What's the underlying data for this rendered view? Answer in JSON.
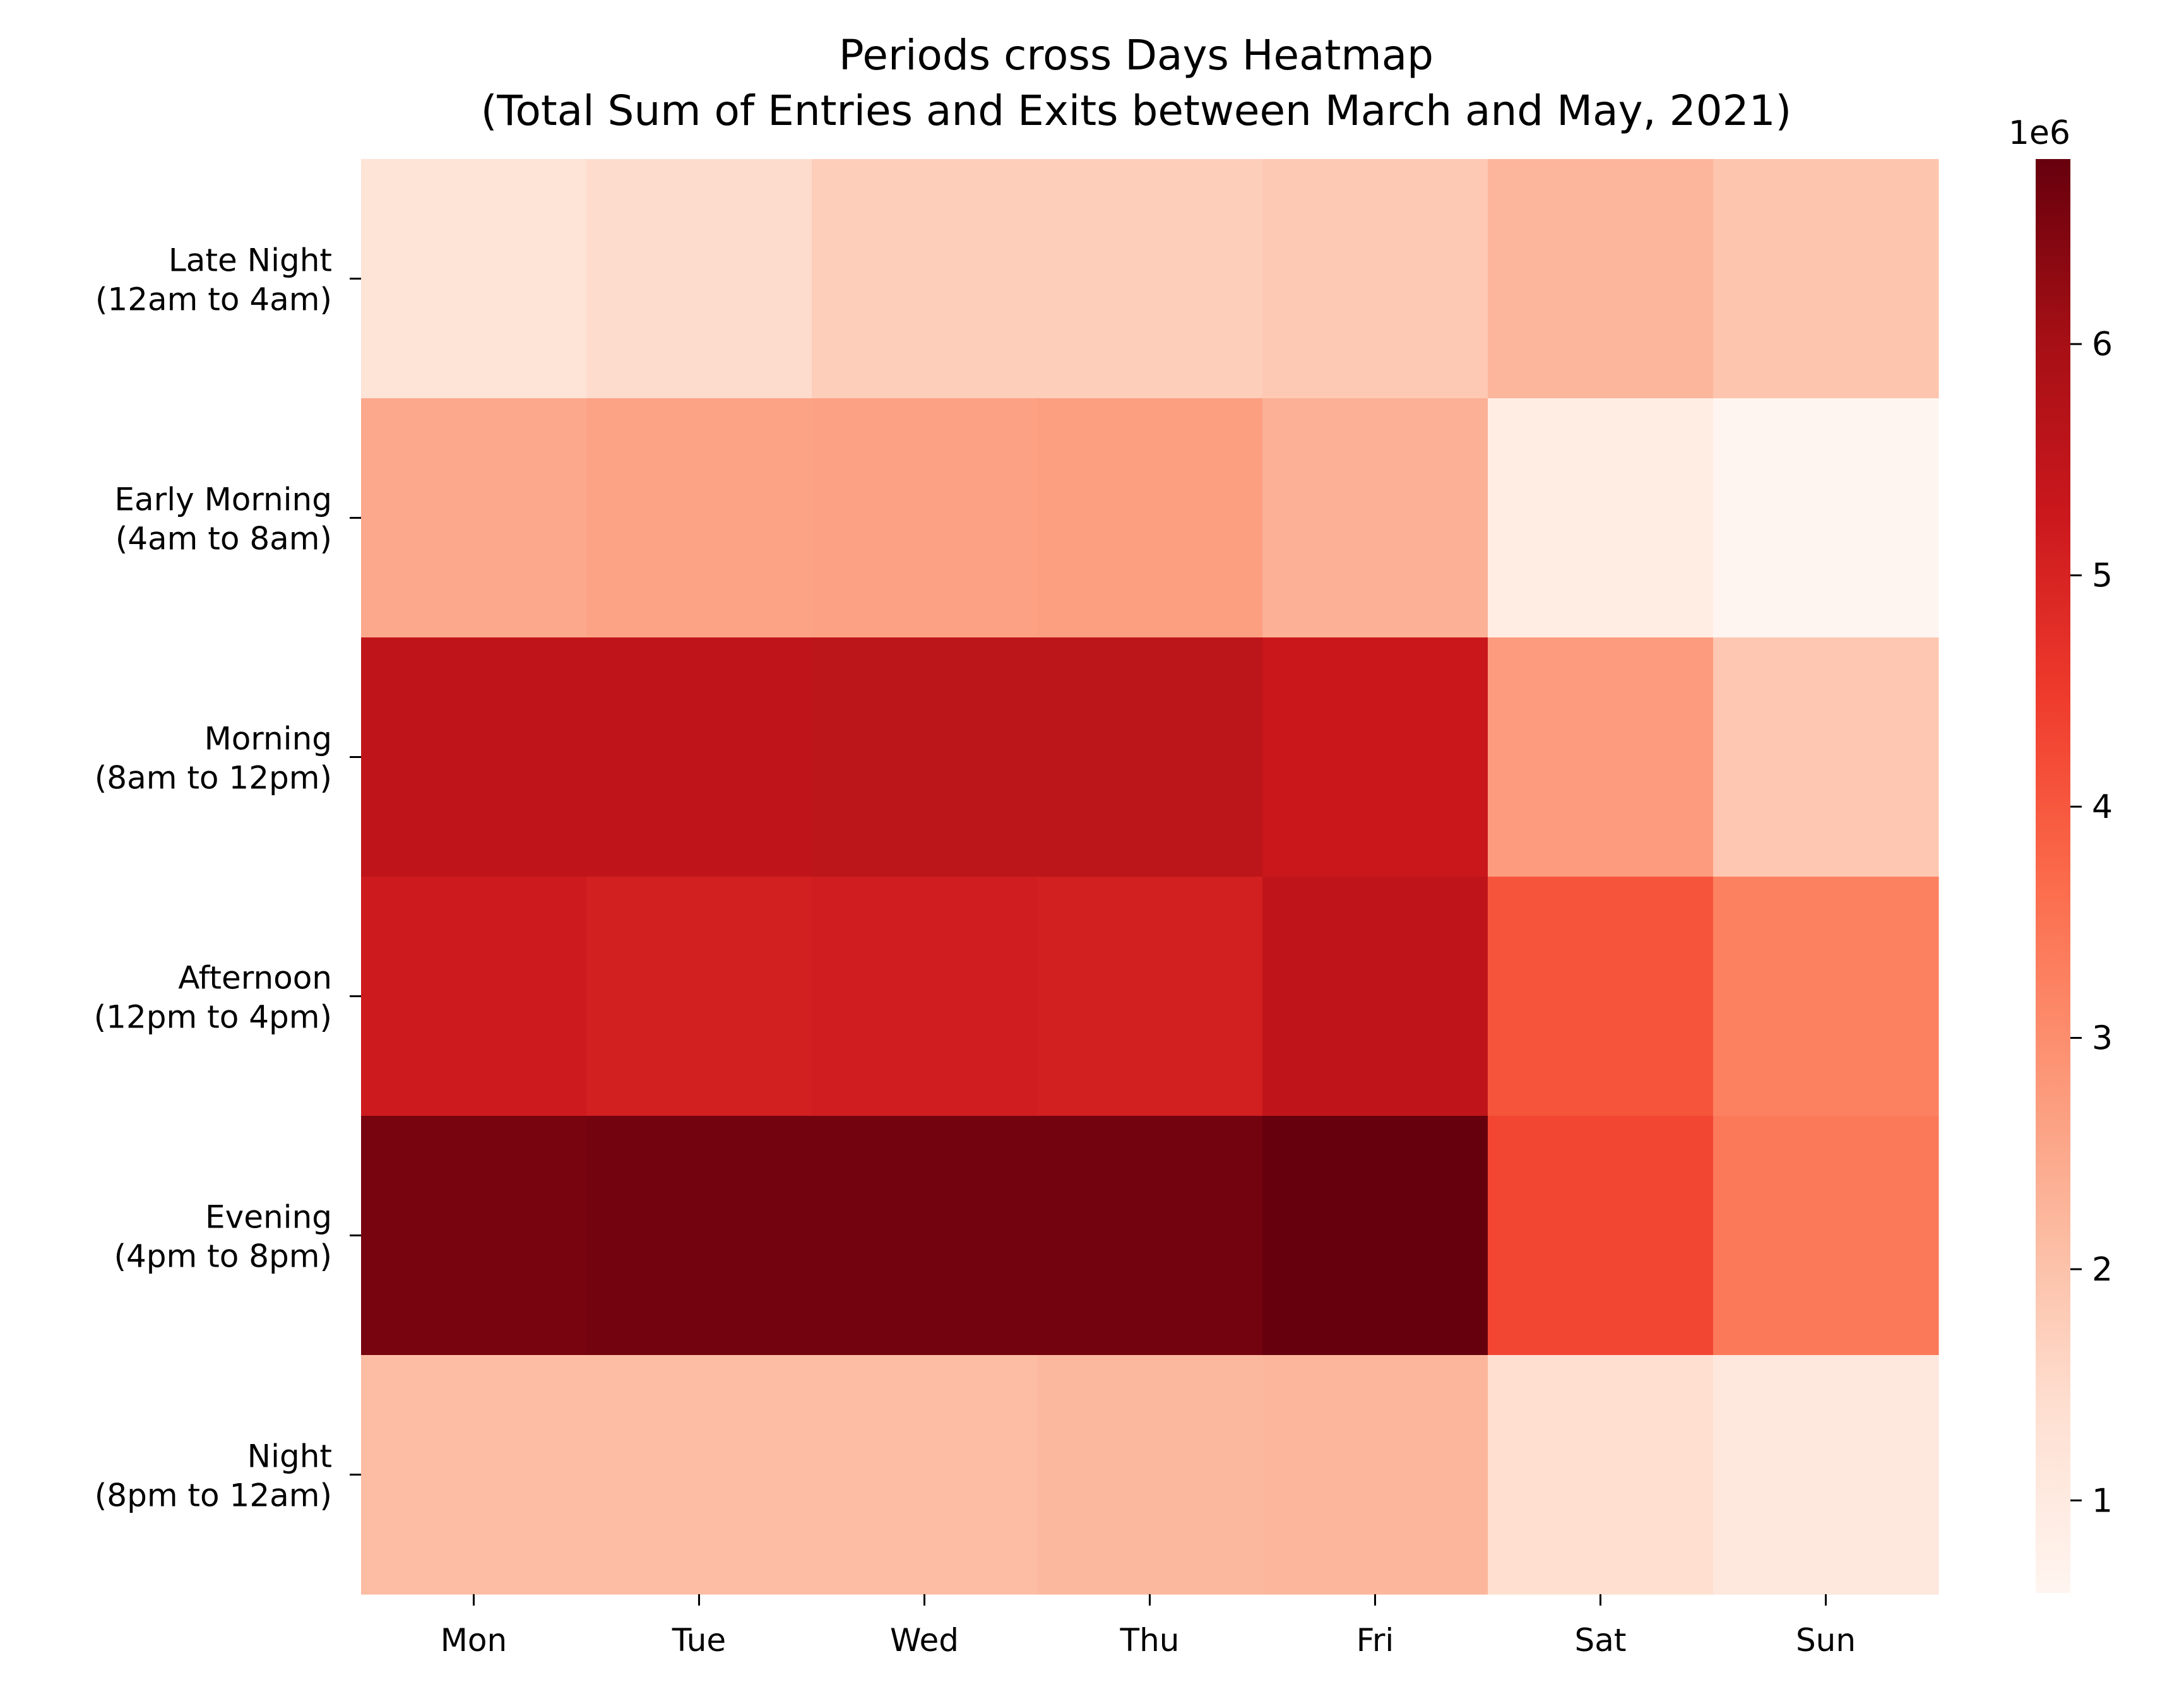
{
  "chart_data": {
    "type": "heatmap",
    "title": "Periods cross Days Heatmap",
    "subtitle": "(Total Sum of Entries and Exits between March and May, 2021)",
    "xlabel": "",
    "ylabel": "",
    "x_categories": [
      "Mon",
      "Tue",
      "Wed",
      "Thu",
      "Fri",
      "Sat",
      "Sun"
    ],
    "y_categories": [
      [
        "Late Night",
        "(12am to 4am)"
      ],
      [
        "Early Morning",
        "(4am to 8am)"
      ],
      [
        "Morning",
        "(8am to 12pm)"
      ],
      [
        "Afternoon",
        "(12pm to 4pm)"
      ],
      [
        "Evening",
        "(4pm to 8pm)"
      ],
      [
        "Night",
        "(8pm to 12am)"
      ]
    ],
    "values": [
      [
        1.25,
        1.45,
        1.75,
        1.75,
        1.85,
        2.25,
        1.95
      ],
      [
        2.5,
        2.6,
        2.65,
        2.7,
        2.35,
        0.9,
        0.6
      ],
      [
        5.5,
        5.5,
        5.55,
        5.55,
        5.3,
        2.75,
        1.9
      ],
      [
        5.2,
        5.1,
        5.15,
        5.1,
        5.5,
        4.05,
        3.25
      ],
      [
        6.6,
        6.65,
        6.65,
        6.65,
        6.8,
        4.3,
        3.4
      ],
      [
        2.1,
        2.1,
        2.1,
        2.2,
        2.25,
        1.4,
        1.1
      ]
    ],
    "colorbar": {
      "min": 0.6,
      "max": 6.8,
      "ticks": [
        1,
        2,
        3,
        4,
        5,
        6
      ],
      "offset_label": "1e6",
      "colormap": "Reds"
    },
    "grid": false,
    "legend": "colorbar-right"
  }
}
